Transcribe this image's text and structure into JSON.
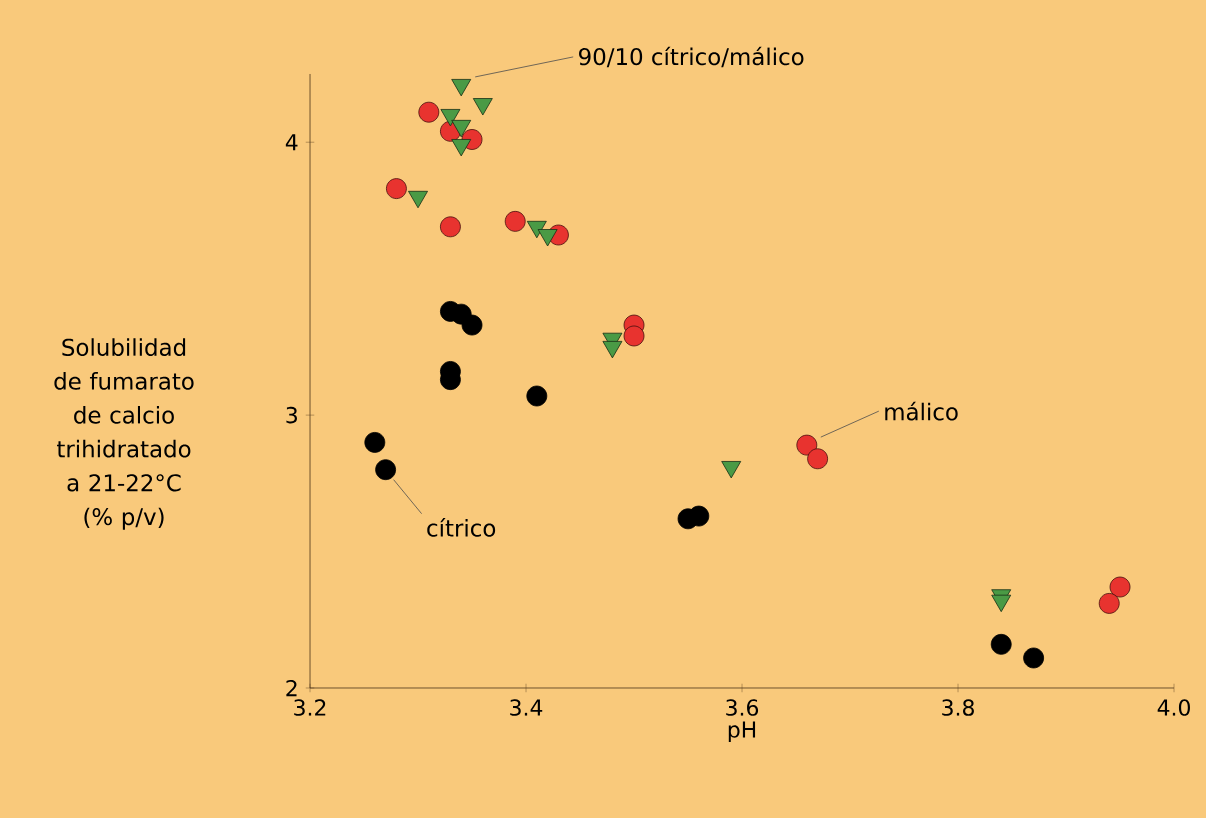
{
  "chart_data": {
    "type": "scatter",
    "xlabel": "pH",
    "ylabel": "Solubilidad de fumarato de calcio trihidratado a 21-22°C (% p/v)",
    "xlim": [
      3.2,
      4.0
    ],
    "xticks": [
      3.2,
      3.4,
      3.6,
      3.8,
      {
        "value": 4,
        "label": "4.0"
      }
    ],
    "ylim": [
      2,
      4.25
    ],
    "yticks": [
      2,
      3,
      4
    ],
    "series": [
      {
        "color": "#000000",
        "marker": "circle",
        "x": [
          3.33,
          3.34,
          3.35,
          3.33,
          3.33,
          3.41,
          3.26,
          3.27,
          3.55,
          3.56,
          3.84,
          3.87
        ],
        "values": [
          3.38,
          3.37,
          3.33,
          3.16,
          3.13,
          3.07,
          2.9,
          2.8,
          2.62,
          2.63,
          2.16,
          2.11
        ]
      },
      {
        "color": "#e8332f",
        "marker": "circle",
        "x": [
          3.31,
          3.33,
          3.35,
          3.28,
          3.33,
          3.39,
          3.43,
          3.5,
          3.5,
          3.66,
          3.67,
          3.95,
          3.94
        ],
        "values": [
          4.11,
          4.04,
          4.01,
          3.83,
          3.69,
          3.71,
          3.66,
          3.33,
          3.29,
          2.89,
          2.84,
          2.37,
          2.31
        ]
      },
      {
        "color": "#4a9a45",
        "marker": "triangle",
        "x": [
          3.34,
          3.36,
          3.33,
          3.34,
          3.34,
          3.3,
          3.41,
          3.42,
          3.48,
          3.48,
          3.59,
          3.84,
          3.84
        ],
        "values": [
          4.21,
          4.14,
          4.1,
          4.06,
          3.99,
          3.8,
          3.69,
          3.66,
          3.28,
          3.25,
          2.81,
          2.34,
          2.32
        ]
      }
    ],
    "annotations": [
      {
        "text": "90/10 cítrico/málico",
        "x": 3.34,
        "y": 4.21
      },
      {
        "text": "málico",
        "x": 3.66,
        "y": 2.89
      },
      {
        "text": "cítrico",
        "x": 3.27,
        "y": 2.8
      }
    ]
  }
}
